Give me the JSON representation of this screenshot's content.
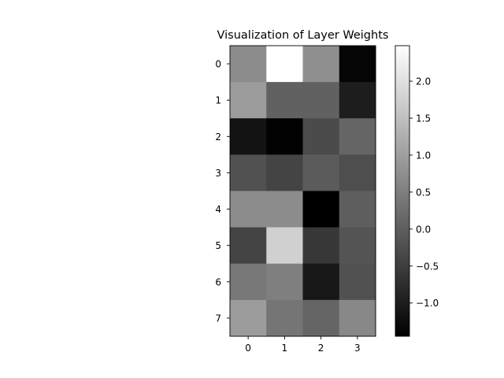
{
  "chart_data": {
    "type": "heatmap",
    "title": "Visualization of Layer Weights",
    "xlabel": "",
    "ylabel": "",
    "colormap": "gray",
    "rows": [
      "0",
      "1",
      "2",
      "3",
      "4",
      "5",
      "6",
      "7"
    ],
    "cols": [
      "0",
      "1",
      "2",
      "3"
    ],
    "values": [
      [
        0.7,
        2.48,
        0.75,
        -1.38
      ],
      [
        0.95,
        0.05,
        0.05,
        -1.0
      ],
      [
        -1.15,
        -1.42,
        -0.3,
        0.1
      ],
      [
        -0.2,
        -0.4,
        -0.05,
        -0.25
      ],
      [
        0.7,
        0.7,
        -1.45,
        0.0
      ],
      [
        -0.4,
        1.75,
        -0.6,
        -0.15
      ],
      [
        0.4,
        0.5,
        -1.1,
        -0.2
      ],
      [
        0.95,
        0.35,
        0.1,
        0.65
      ]
    ],
    "vmin": -1.45,
    "vmax": 2.48,
    "colorbar_ticks": [
      -1.0,
      -0.5,
      0.0,
      0.5,
      1.0,
      1.5,
      2.0
    ],
    "colorbar_tick_labels": [
      "−1.0",
      "−0.5",
      "0.0",
      "0.5",
      "1.0",
      "1.5",
      "2.0"
    ],
    "grid": false
  }
}
